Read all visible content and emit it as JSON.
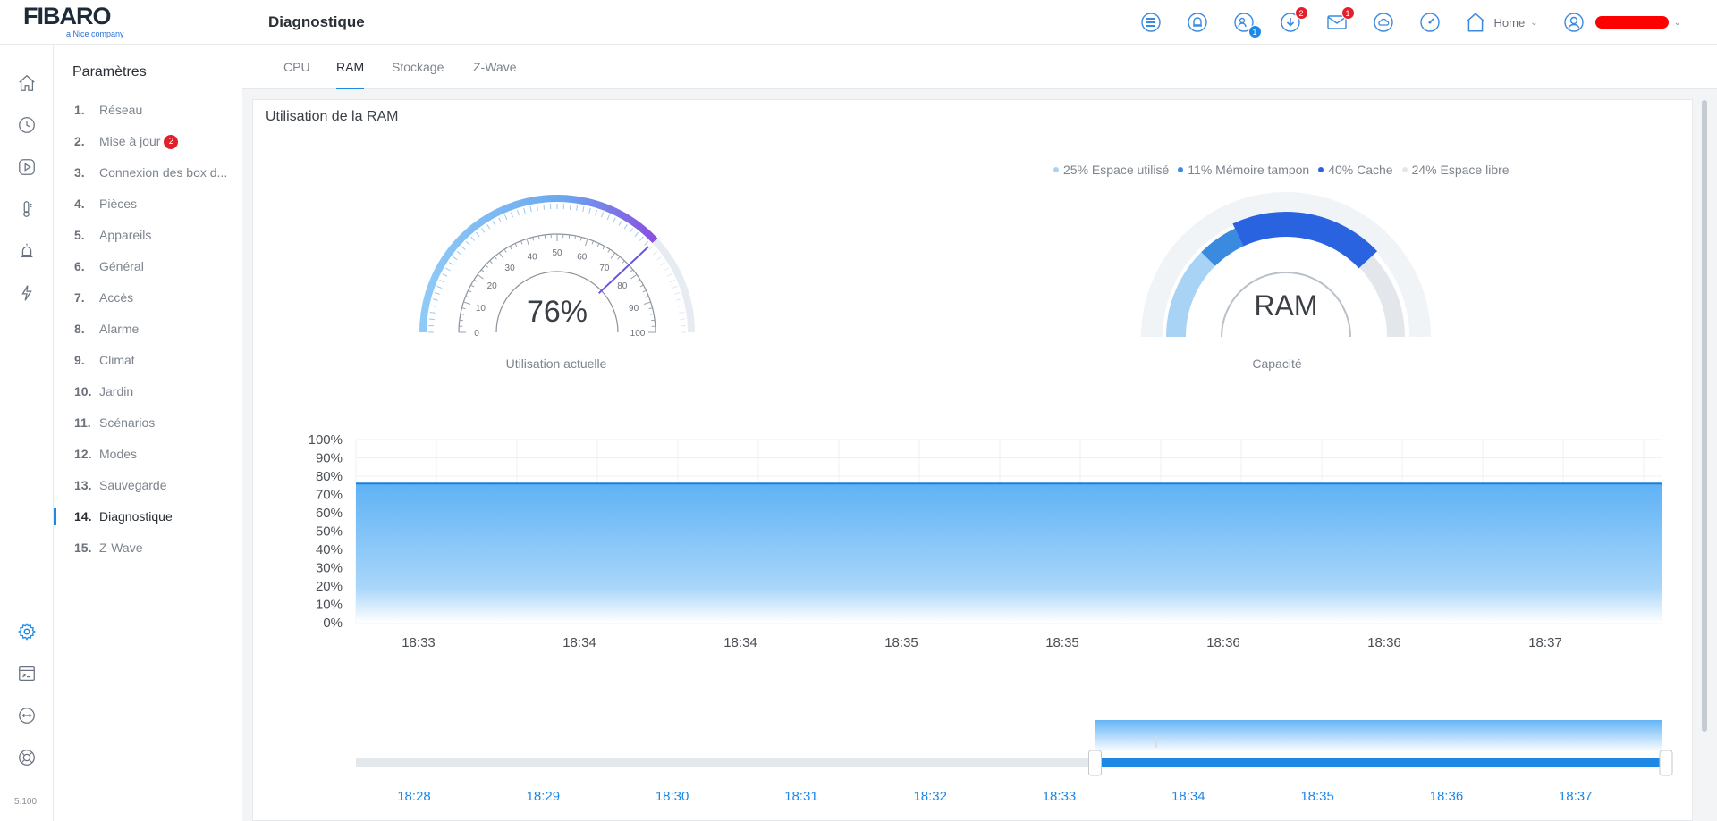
{
  "header": {
    "logo": "FIBARO",
    "logo_sub": "a Nice company",
    "title": "Diagnostique",
    "home_label": "Home",
    "badges": {
      "users": "1",
      "download": "2",
      "mail": "1"
    }
  },
  "rail": {
    "version": "5.100"
  },
  "settings": {
    "title": "Paramètres",
    "items": [
      {
        "num": "1.",
        "label": "Réseau"
      },
      {
        "num": "2.",
        "label": "Mise à jour",
        "badge": "2"
      },
      {
        "num": "3.",
        "label": "Connexion des box d..."
      },
      {
        "num": "4.",
        "label": "Pièces"
      },
      {
        "num": "5.",
        "label": "Appareils"
      },
      {
        "num": "6.",
        "label": "Général"
      },
      {
        "num": "7.",
        "label": "Accès"
      },
      {
        "num": "8.",
        "label": "Alarme"
      },
      {
        "num": "9.",
        "label": "Climat"
      },
      {
        "num": "10.",
        "label": "Jardin"
      },
      {
        "num": "11.",
        "label": "Scénarios"
      },
      {
        "num": "12.",
        "label": "Modes"
      },
      {
        "num": "13.",
        "label": "Sauvegarde"
      },
      {
        "num": "14.",
        "label": "Diagnostique",
        "active": true
      },
      {
        "num": "15.",
        "label": "Z-Wave"
      }
    ]
  },
  "tabs": [
    "CPU",
    "RAM",
    "Stockage",
    "Z-Wave"
  ],
  "active_tab": "RAM",
  "card": {
    "title": "Utilisation de la RAM",
    "usage_gauge": {
      "value": 76,
      "label": "76%",
      "caption": "Utilisation actuelle",
      "ticks": [
        "0",
        "10",
        "20",
        "30",
        "40",
        "50",
        "60",
        "70",
        "80",
        "90",
        "100"
      ]
    },
    "capacity_gauge": {
      "label": "RAM",
      "caption": "Capacité",
      "legend": [
        {
          "text": "25% Espace utilisé",
          "color": "#a9d3f5"
        },
        {
          "text": "11% Mémoire tampon",
          "color": "#3a8be0"
        },
        {
          "text": "40% Cache",
          "color": "#2a63e0"
        },
        {
          "text": "24% Espace libre",
          "color": "#e3e7eb"
        }
      ]
    }
  },
  "chart_data": [
    {
      "type": "area",
      "x": [
        "18:33",
        "18:34",
        "18:34",
        "18:35",
        "18:35",
        "18:36",
        "18:36",
        "18:37"
      ],
      "values": [
        76,
        76,
        76,
        76,
        76,
        76,
        76,
        76
      ],
      "ylim": [
        0,
        100
      ],
      "yticks": [
        "0%",
        "10%",
        "20%",
        "30%",
        "40%",
        "50%",
        "60%",
        "70%",
        "80%",
        "90%",
        "100%"
      ],
      "color": "#64b5f6"
    },
    {
      "type": "area",
      "x": [
        "18:28",
        "18:29",
        "18:30",
        "18:31",
        "18:32",
        "18:33",
        "18:34",
        "18:35",
        "18:36",
        "18:37"
      ],
      "selected_range": [
        "18:33",
        "18:37"
      ],
      "color": "#1e88e5"
    }
  ]
}
